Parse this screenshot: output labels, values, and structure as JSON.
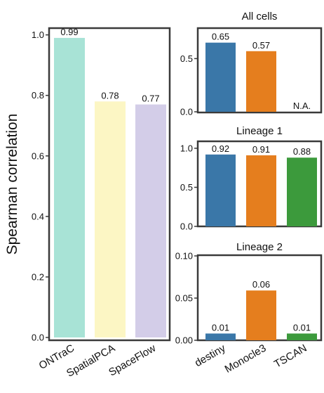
{
  "chart_data": [
    {
      "type": "bar",
      "ylabel": "Spearman correlation",
      "categories": [
        "ONTraC",
        "SpatialPCA",
        "SpaceFlow"
      ],
      "values": [
        0.99,
        0.78,
        0.77
      ],
      "value_labels": [
        "0.99",
        "0.78",
        "0.77"
      ],
      "colors": [
        "#a8e3d6",
        "#fcf6c4",
        "#d3cde8"
      ],
      "ylim": [
        0,
        1.02
      ],
      "yticks": [
        0.0,
        0.2,
        0.4,
        0.6,
        0.8,
        1.0
      ],
      "ytick_labels": [
        "0.0",
        "0.2",
        "0.4",
        "0.6",
        "0.8",
        "1.0"
      ],
      "grid": false
    },
    {
      "type": "bar",
      "title": "All cells",
      "categories": [
        "destiny",
        "Monocle3",
        "TSCAN"
      ],
      "values": [
        0.65,
        0.57,
        null
      ],
      "value_labels": [
        "0.65",
        "0.57",
        "N.A."
      ],
      "colors": [
        "#3a77a8",
        "#e57e1e",
        "#3c9a3c"
      ],
      "ylim": [
        0,
        0.78
      ],
      "yticks": [
        0.0,
        0.5
      ],
      "ytick_labels": [
        "0.0",
        "0.5"
      ],
      "grid": false
    },
    {
      "type": "bar",
      "title": "Lineage 1",
      "categories": [
        "destiny",
        "Monocle3",
        "TSCAN"
      ],
      "values": [
        0.92,
        0.91,
        0.88
      ],
      "value_labels": [
        "0.92",
        "0.91",
        "0.88"
      ],
      "colors": [
        "#3a77a8",
        "#e57e1e",
        "#3c9a3c"
      ],
      "ylim": [
        0,
        1.08
      ],
      "yticks": [
        0.0,
        0.5,
        1.0
      ],
      "ytick_labels": [
        "0.0",
        "0.5",
        "1.0"
      ],
      "grid": false
    },
    {
      "type": "bar",
      "title": "Lineage 2",
      "categories": [
        "destiny",
        "Monocle3",
        "TSCAN"
      ],
      "values": [
        0.008,
        0.059,
        0.008
      ],
      "value_labels": [
        "0.01",
        "0.06",
        "0.01"
      ],
      "colors": [
        "#3a77a8",
        "#e57e1e",
        "#3c9a3c"
      ],
      "ylim": [
        0,
        0.1
      ],
      "yticks": [
        0.0,
        0.05,
        0.1
      ],
      "ytick_labels": [
        "0.00",
        "0.05",
        "0.10"
      ],
      "grid": false
    }
  ]
}
